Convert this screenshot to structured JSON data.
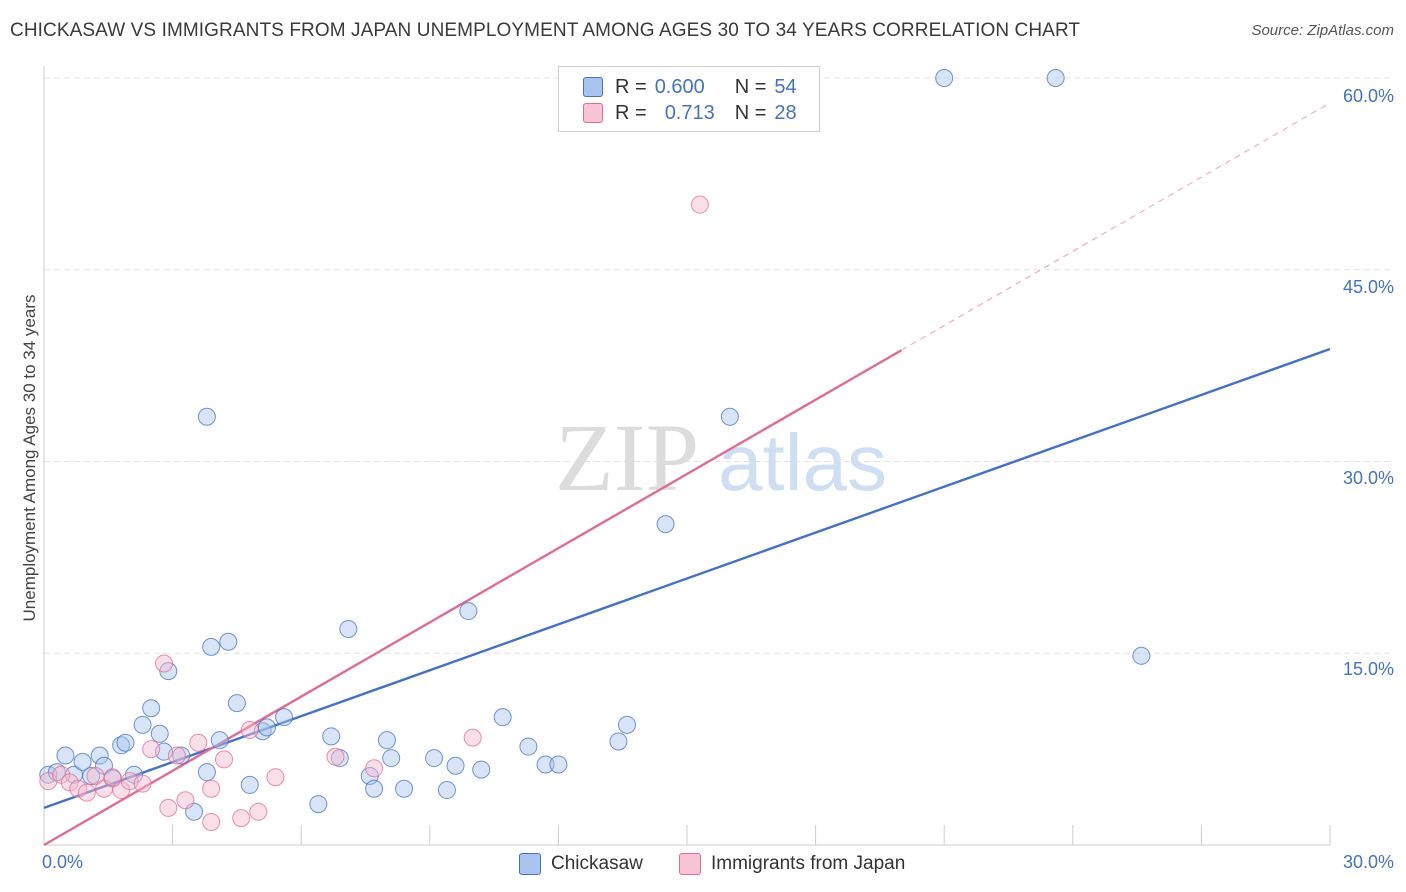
{
  "chart_data": {
    "type": "scatter",
    "title": "CHICKASAW VS IMMIGRANTS FROM JAPAN UNEMPLOYMENT AMONG AGES 30 TO 34 YEARS CORRELATION CHART",
    "source": "Source: ZipAtlas.com",
    "ylabel": "Unemployment Among Ages 30 to 34 years",
    "xlabel": "",
    "xlim": [
      0,
      30
    ],
    "ylim": [
      0,
      60
    ],
    "x_tick_labels": {
      "min": "0.0%",
      "max": "30.0%"
    },
    "y_tick_labels": [
      "15.0%",
      "30.0%",
      "45.0%",
      "60.0%"
    ],
    "y_ticks": [
      15,
      30,
      45,
      60
    ],
    "watermark": {
      "zip": "ZIP",
      "atlas": "atlas"
    },
    "legend": {
      "r_label": "R =",
      "n_label": "N =",
      "entries": [
        {
          "r": "0.600",
          "n": "54"
        },
        {
          "r": "0.713",
          "n": "28"
        }
      ]
    },
    "series": [
      {
        "name": "Chickasaw",
        "color": "#4472c4",
        "fill": "#a9c4ee",
        "trend": {
          "x0": 0,
          "y0": 2.9,
          "x1": 30,
          "y1": 38.8
        },
        "points": [
          [
            0.1,
            5.5
          ],
          [
            0.3,
            5.7
          ],
          [
            0.5,
            7.0
          ],
          [
            0.7,
            5.5
          ],
          [
            0.9,
            6.5
          ],
          [
            1.1,
            5.4
          ],
          [
            1.3,
            7.0
          ],
          [
            1.4,
            6.2
          ],
          [
            1.6,
            5.2
          ],
          [
            1.8,
            7.8
          ],
          [
            1.9,
            8.0
          ],
          [
            2.1,
            5.5
          ],
          [
            2.3,
            9.4
          ],
          [
            2.5,
            10.7
          ],
          [
            2.7,
            8.7
          ],
          [
            2.9,
            13.6
          ],
          [
            2.8,
            7.3
          ],
          [
            3.2,
            7.0
          ],
          [
            3.5,
            2.6
          ],
          [
            3.8,
            5.7
          ],
          [
            3.8,
            33.5
          ],
          [
            3.9,
            15.5
          ],
          [
            4.1,
            8.2
          ],
          [
            4.3,
            15.9
          ],
          [
            4.5,
            11.1
          ],
          [
            4.8,
            4.7
          ],
          [
            5.1,
            8.9
          ],
          [
            5.2,
            9.2
          ],
          [
            5.6,
            10.0
          ],
          [
            6.4,
            3.2
          ],
          [
            6.7,
            8.5
          ],
          [
            6.9,
            6.8
          ],
          [
            7.1,
            16.9
          ],
          [
            7.6,
            5.4
          ],
          [
            7.7,
            4.4
          ],
          [
            8.0,
            8.2
          ],
          [
            8.1,
            6.8
          ],
          [
            8.4,
            4.4
          ],
          [
            9.1,
            6.8
          ],
          [
            9.4,
            4.3
          ],
          [
            9.6,
            6.2
          ],
          [
            9.9,
            18.3
          ],
          [
            10.2,
            5.9
          ],
          [
            10.7,
            10.0
          ],
          [
            11.3,
            7.7
          ],
          [
            11.7,
            6.3
          ],
          [
            12.0,
            6.3
          ],
          [
            13.4,
            8.1
          ],
          [
            13.6,
            9.4
          ],
          [
            14.5,
            25.1
          ],
          [
            16.0,
            33.5
          ],
          [
            21.0,
            60.0
          ],
          [
            23.6,
            60.0
          ],
          [
            25.6,
            14.8
          ]
        ]
      },
      {
        "name": "Immigrants from Japan",
        "color": "#e06c96",
        "fill": "#f7b8cd",
        "trend": {
          "x0": 0,
          "y0": 0,
          "x1": 20,
          "y1": 38.7
        },
        "points": [
          [
            0.1,
            5.0
          ],
          [
            0.4,
            5.5
          ],
          [
            0.6,
            4.9
          ],
          [
            0.8,
            4.4
          ],
          [
            1.0,
            4.1
          ],
          [
            1.2,
            5.4
          ],
          [
            1.4,
            4.4
          ],
          [
            1.6,
            5.3
          ],
          [
            1.8,
            4.3
          ],
          [
            2.0,
            5.0
          ],
          [
            2.3,
            4.8
          ],
          [
            2.5,
            7.5
          ],
          [
            2.8,
            14.2
          ],
          [
            2.9,
            2.9
          ],
          [
            3.1,
            7.0
          ],
          [
            3.3,
            3.5
          ],
          [
            3.6,
            8.0
          ],
          [
            3.9,
            4.4
          ],
          [
            3.9,
            1.8
          ],
          [
            4.2,
            6.7
          ],
          [
            4.6,
            2.1
          ],
          [
            4.8,
            9.0
          ],
          [
            5.0,
            2.6
          ],
          [
            5.4,
            5.3
          ],
          [
            6.8,
            6.9
          ],
          [
            7.7,
            6.0
          ],
          [
            10.0,
            8.4
          ],
          [
            15.3,
            50.1
          ]
        ]
      }
    ]
  }
}
